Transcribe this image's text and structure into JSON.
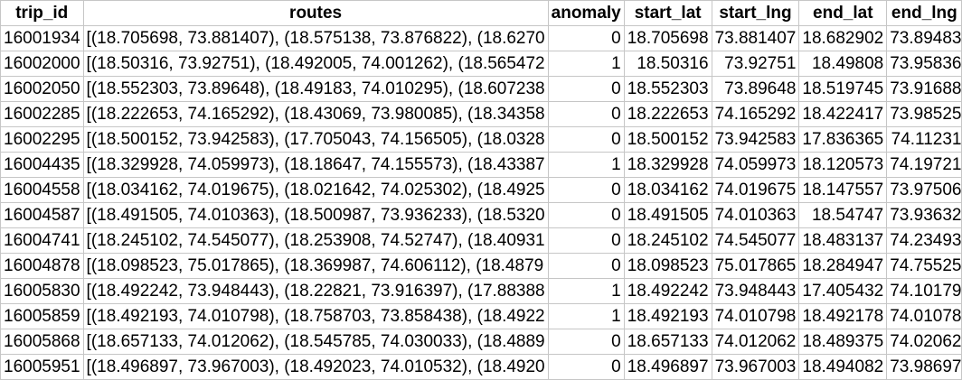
{
  "columns": [
    "trip_id",
    "routes",
    "anomaly",
    "start_lat",
    "start_lng",
    "end_lat",
    "end_lng"
  ],
  "rows": [
    [
      "16001934",
      "[(18.705698, 73.881407), (18.575138, 73.876822), (18.6270",
      "0",
      "18.705698",
      "73.881407",
      "18.682902",
      "73.89483"
    ],
    [
      "16002000",
      "[(18.50316, 73.92751), (18.492005, 74.001262), (18.565472",
      "1",
      "18.50316",
      "73.92751",
      "18.49808",
      "73.95836"
    ],
    [
      "16002050",
      "[(18.552303, 73.89648), (18.49183, 74.010295), (18.607238",
      "0",
      "18.552303",
      "73.89648",
      "18.519745",
      "73.91688"
    ],
    [
      "16002285",
      "[(18.222653, 74.165292), (18.43069, 73.980085), (18.34358",
      "0",
      "18.222653",
      "74.165292",
      "18.422417",
      "73.98525"
    ],
    [
      "16002295",
      "[(18.500152, 73.942583), (17.705043, 74.156505), (18.0328",
      "0",
      "18.500152",
      "73.942583",
      "17.836365",
      "74.11231"
    ],
    [
      "16004435",
      "[(18.329928, 74.059973), (18.18647, 74.155573), (18.43387",
      "1",
      "18.329928",
      "74.059973",
      "18.120573",
      "74.19721"
    ],
    [
      "16004558",
      "[(18.034162, 74.019675), (18.021642, 74.025302), (18.4925",
      "0",
      "18.034162",
      "74.019675",
      "18.147557",
      "73.97506"
    ],
    [
      "16004587",
      "[(18.491505, 74.010363), (18.500987, 73.936233), (18.5320",
      "0",
      "18.491505",
      "74.010363",
      "18.54747",
      "73.93632"
    ],
    [
      "16004741",
      "[(18.245102, 74.545077), (18.253908, 74.52747), (18.40931",
      "0",
      "18.245102",
      "74.545077",
      "18.483137",
      "74.23493"
    ],
    [
      "16004878",
      "[(18.098523, 75.017865), (18.369987, 74.606112), (18.4879",
      "0",
      "18.098523",
      "75.017865",
      "18.284947",
      "74.75525"
    ],
    [
      "16005830",
      "[(18.492242, 73.948443), (18.22821, 73.916397), (17.88388",
      "1",
      "18.492242",
      "73.948443",
      "17.405432",
      "74.10179"
    ],
    [
      "16005859",
      "[(18.492193, 74.010798), (18.758703, 73.858438), (18.4922",
      "1",
      "18.492193",
      "74.010798",
      "18.492178",
      "74.01078"
    ],
    [
      "16005868",
      "[(18.657133, 74.012062), (18.545785, 74.030033), (18.4889",
      "0",
      "18.657133",
      "74.012062",
      "18.489375",
      "74.02062"
    ],
    [
      "16005951",
      "[(18.496897, 73.967003), (18.492023, 74.010532), (18.4920",
      "0",
      "18.496897",
      "73.967003",
      "18.494082",
      "73.98697"
    ]
  ]
}
